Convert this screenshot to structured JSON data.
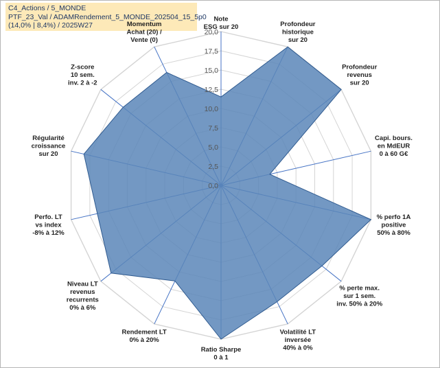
{
  "header": {
    "line1": "C4_Actions / 5_MONDE",
    "line2": "PTF_23_Val / ADAMRendement_5_MONDE_202504_15_5p0",
    "line3": "(14,0% | 8,4%) / 2025W27"
  },
  "chart_data": {
    "type": "radar",
    "rmax": 20,
    "ticks": [
      "0,0",
      "2,5",
      "5,0",
      "7,5",
      "10,0",
      "12,5",
      "15,0",
      "17,5",
      "20,0"
    ],
    "tick_values": [
      0,
      2.5,
      5,
      7.5,
      10,
      12.5,
      15,
      17.5,
      20
    ],
    "grid": true,
    "colors": {
      "fill": "#5b86b8",
      "stroke": "#2f5a8f",
      "grid": "#d4d4d4",
      "spoke": "#4472c4"
    },
    "axes": [
      {
        "label": [
          "Note",
          "ESG sur 20"
        ]
      },
      {
        "label": [
          "Profondeur",
          "historique",
          "sur 20"
        ]
      },
      {
        "label": [
          "Profondeur",
          "revenus",
          "sur 20"
        ]
      },
      {
        "label": [
          "Capi. bours.",
          "en MdEUR",
          "0 à 60 G€"
        ]
      },
      {
        "label": [
          "% perfo 1A",
          "positive",
          "50% à 80%"
        ]
      },
      {
        "label": [
          "% perte max.",
          "sur 1 sem.",
          "inv. 50% à 20%"
        ]
      },
      {
        "label": [
          "Volatilité LT",
          "inversée",
          "40% à 0%"
        ]
      },
      {
        "label": [
          "Ratio Sharpe",
          "0 à 1"
        ]
      },
      {
        "label": [
          "Rendement LT",
          "0% à 20%"
        ]
      },
      {
        "label": [
          "Niveau LT",
          "revenus",
          "recurrents",
          "0% à 6%"
        ]
      },
      {
        "label": [
          "Perfo. LT",
          "vs index",
          "-8% à 12%"
        ]
      },
      {
        "label": [
          "Régularité",
          "croissance",
          "sur 20"
        ]
      },
      {
        "label": [
          "Z-score",
          "10 sem.",
          "inv. 2 à -2"
        ]
      },
      {
        "label": [
          "Momentum",
          "Achat (20) /",
          "Vente (0)"
        ]
      }
    ],
    "values": [
      11.5,
      20,
      20,
      6.5,
      20,
      16.8,
      16.8,
      20,
      13.8,
      18.3,
      16.5,
      18.3,
      16.3,
      16.3
    ]
  }
}
